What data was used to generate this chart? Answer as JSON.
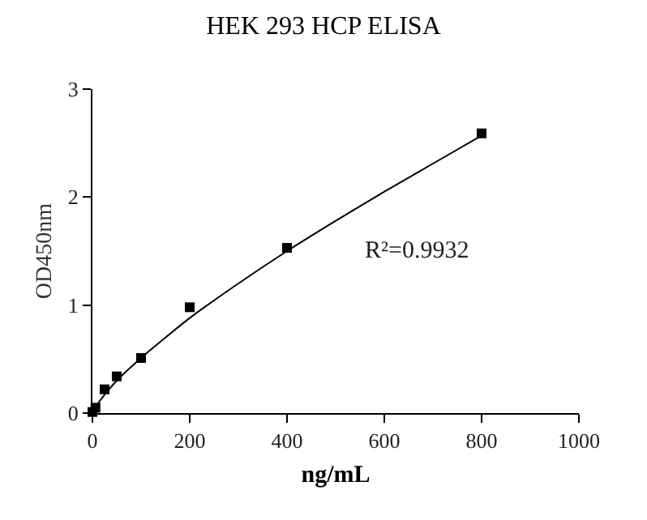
{
  "chart_data": {
    "type": "scatter",
    "title": "HEK 293 HCP ELISA",
    "xlabel": "ng/mL",
    "ylabel": "OD450nm",
    "xlim": [
      0,
      1000
    ],
    "xticks": [
      0,
      200,
      400,
      600,
      800,
      1000
    ],
    "ylim": [
      0,
      3
    ],
    "yticks": [
      0,
      1,
      2,
      3
    ],
    "grid": false,
    "marker": "square",
    "series": [
      {
        "color": "#000000",
        "x": [
          0,
          6.25,
          25,
          50,
          100,
          200,
          400,
          800
        ],
        "values": [
          0.01,
          0.05,
          0.22,
          0.34,
          0.51,
          0.98,
          1.53,
          2.59
        ]
      },
      {
        "type": "line",
        "color": "#000000",
        "line_style": "solid",
        "marker": "none",
        "x": [
          0,
          10,
          25,
          50,
          100,
          200,
          300,
          400,
          500,
          600,
          700,
          800
        ],
        "values": [
          0,
          0.08,
          0.17,
          0.3,
          0.51,
          0.88,
          1.2,
          1.5,
          1.78,
          2.05,
          2.31,
          2.57
        ]
      }
    ],
    "annotations": [
      "R²=0.9932"
    ]
  }
}
